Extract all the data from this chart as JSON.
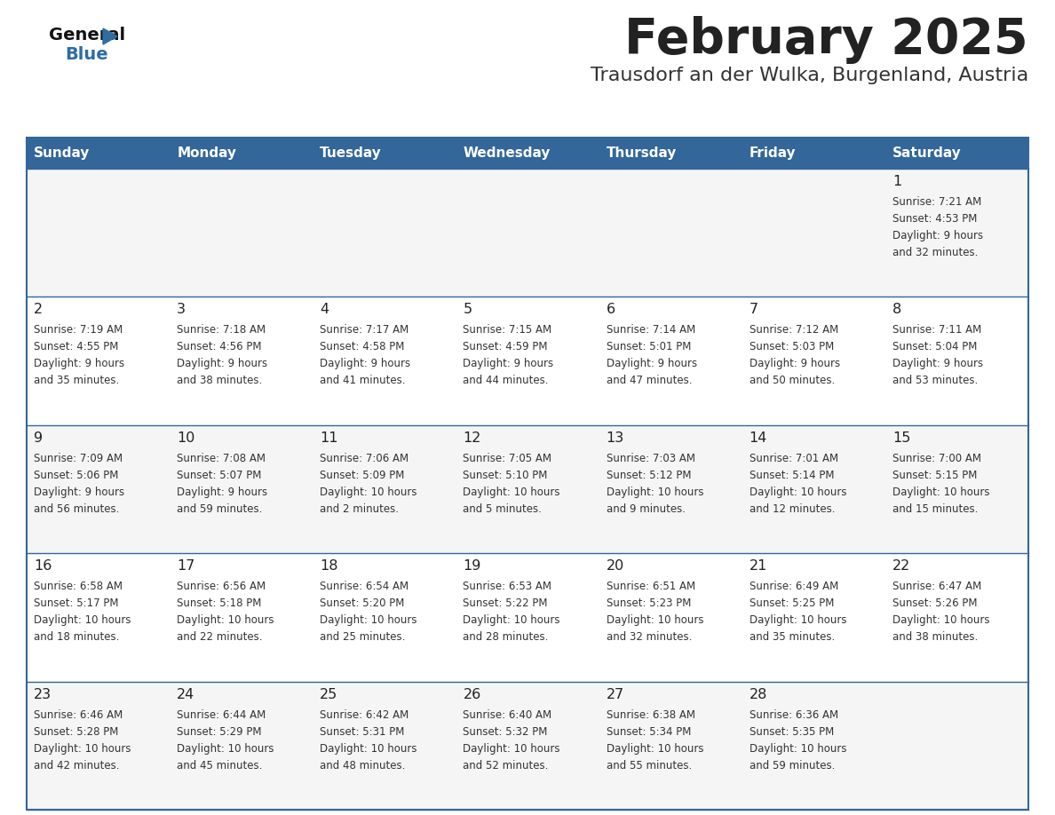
{
  "title": "February 2025",
  "subtitle": "Trausdorf an der Wulka, Burgenland, Austria",
  "days_of_week": [
    "Sunday",
    "Monday",
    "Tuesday",
    "Wednesday",
    "Thursday",
    "Friday",
    "Saturday"
  ],
  "header_bg": "#336699",
  "header_text_color": "#FFFFFF",
  "row_bg_odd": "#F5F5F5",
  "row_bg_even": "#FFFFFF",
  "divider_color": "#336699",
  "text_color": "#333333",
  "day_num_color": "#222222",
  "calendar_data": [
    [
      null,
      null,
      null,
      null,
      null,
      null,
      {
        "day": "1",
        "sunrise": "7:21 AM",
        "sunset": "4:53 PM",
        "daylight": "9 hours",
        "daylight2": "and 32 minutes."
      }
    ],
    [
      {
        "day": "2",
        "sunrise": "7:19 AM",
        "sunset": "4:55 PM",
        "daylight": "9 hours",
        "daylight2": "and 35 minutes."
      },
      {
        "day": "3",
        "sunrise": "7:18 AM",
        "sunset": "4:56 PM",
        "daylight": "9 hours",
        "daylight2": "and 38 minutes."
      },
      {
        "day": "4",
        "sunrise": "7:17 AM",
        "sunset": "4:58 PM",
        "daylight": "9 hours",
        "daylight2": "and 41 minutes."
      },
      {
        "day": "5",
        "sunrise": "7:15 AM",
        "sunset": "4:59 PM",
        "daylight": "9 hours",
        "daylight2": "and 44 minutes."
      },
      {
        "day": "6",
        "sunrise": "7:14 AM",
        "sunset": "5:01 PM",
        "daylight": "9 hours",
        "daylight2": "and 47 minutes."
      },
      {
        "day": "7",
        "sunrise": "7:12 AM",
        "sunset": "5:03 PM",
        "daylight": "9 hours",
        "daylight2": "and 50 minutes."
      },
      {
        "day": "8",
        "sunrise": "7:11 AM",
        "sunset": "5:04 PM",
        "daylight": "9 hours",
        "daylight2": "and 53 minutes."
      }
    ],
    [
      {
        "day": "9",
        "sunrise": "7:09 AM",
        "sunset": "5:06 PM",
        "daylight": "9 hours",
        "daylight2": "and 56 minutes."
      },
      {
        "day": "10",
        "sunrise": "7:08 AM",
        "sunset": "5:07 PM",
        "daylight": "9 hours",
        "daylight2": "and 59 minutes."
      },
      {
        "day": "11",
        "sunrise": "7:06 AM",
        "sunset": "5:09 PM",
        "daylight": "10 hours",
        "daylight2": "and 2 minutes."
      },
      {
        "day": "12",
        "sunrise": "7:05 AM",
        "sunset": "5:10 PM",
        "daylight": "10 hours",
        "daylight2": "and 5 minutes."
      },
      {
        "day": "13",
        "sunrise": "7:03 AM",
        "sunset": "5:12 PM",
        "daylight": "10 hours",
        "daylight2": "and 9 minutes."
      },
      {
        "day": "14",
        "sunrise": "7:01 AM",
        "sunset": "5:14 PM",
        "daylight": "10 hours",
        "daylight2": "and 12 minutes."
      },
      {
        "day": "15",
        "sunrise": "7:00 AM",
        "sunset": "5:15 PM",
        "daylight": "10 hours",
        "daylight2": "and 15 minutes."
      }
    ],
    [
      {
        "day": "16",
        "sunrise": "6:58 AM",
        "sunset": "5:17 PM",
        "daylight": "10 hours",
        "daylight2": "and 18 minutes."
      },
      {
        "day": "17",
        "sunrise": "6:56 AM",
        "sunset": "5:18 PM",
        "daylight": "10 hours",
        "daylight2": "and 22 minutes."
      },
      {
        "day": "18",
        "sunrise": "6:54 AM",
        "sunset": "5:20 PM",
        "daylight": "10 hours",
        "daylight2": "and 25 minutes."
      },
      {
        "day": "19",
        "sunrise": "6:53 AM",
        "sunset": "5:22 PM",
        "daylight": "10 hours",
        "daylight2": "and 28 minutes."
      },
      {
        "day": "20",
        "sunrise": "6:51 AM",
        "sunset": "5:23 PM",
        "daylight": "10 hours",
        "daylight2": "and 32 minutes."
      },
      {
        "day": "21",
        "sunrise": "6:49 AM",
        "sunset": "5:25 PM",
        "daylight": "10 hours",
        "daylight2": "and 35 minutes."
      },
      {
        "day": "22",
        "sunrise": "6:47 AM",
        "sunset": "5:26 PM",
        "daylight": "10 hours",
        "daylight2": "and 38 minutes."
      }
    ],
    [
      {
        "day": "23",
        "sunrise": "6:46 AM",
        "sunset": "5:28 PM",
        "daylight": "10 hours",
        "daylight2": "and 42 minutes."
      },
      {
        "day": "24",
        "sunrise": "6:44 AM",
        "sunset": "5:29 PM",
        "daylight": "10 hours",
        "daylight2": "and 45 minutes."
      },
      {
        "day": "25",
        "sunrise": "6:42 AM",
        "sunset": "5:31 PM",
        "daylight": "10 hours",
        "daylight2": "and 48 minutes."
      },
      {
        "day": "26",
        "sunrise": "6:40 AM",
        "sunset": "5:32 PM",
        "daylight": "10 hours",
        "daylight2": "and 52 minutes."
      },
      {
        "day": "27",
        "sunrise": "6:38 AM",
        "sunset": "5:34 PM",
        "daylight": "10 hours",
        "daylight2": "and 55 minutes."
      },
      {
        "day": "28",
        "sunrise": "6:36 AM",
        "sunset": "5:35 PM",
        "daylight": "10 hours",
        "daylight2": "and 59 minutes."
      },
      null
    ]
  ]
}
